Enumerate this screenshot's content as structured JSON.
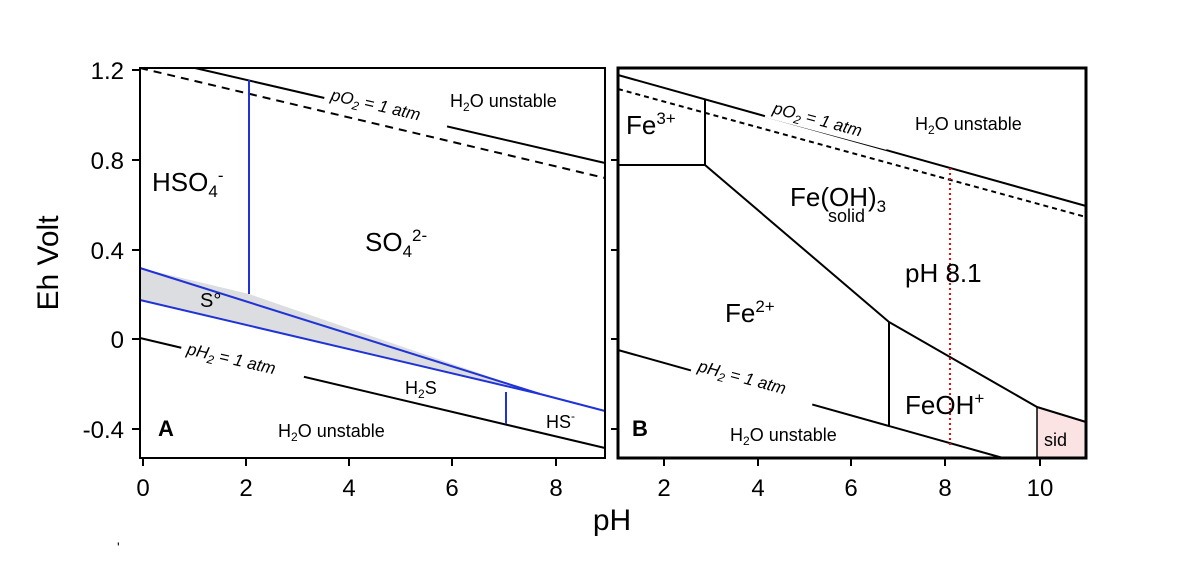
{
  "figure": {
    "y_title": "Eh Volt",
    "x_title": "pH",
    "stray_mark": "'"
  },
  "panel_a": {
    "letter": "A",
    "x_ticks": [
      "0",
      "2",
      "4",
      "6",
      "8"
    ],
    "y_ticks": [
      "1.2",
      "0.8",
      "0.4",
      "0",
      "-0.4"
    ],
    "label_po2": "pO",
    "label_po2_sub": "2",
    "label_po2_rest": " = 1 atm",
    "label_ph2": "pH",
    "label_ph2_sub": "2",
    "label_ph2_rest": " = 1 atm",
    "h2o_top": "H",
    "h2o_top_sub": "2",
    "h2o_top_rest": "O unstable",
    "h2o_bottom": "H",
    "h2o_bottom_sub": "2",
    "h2o_bottom_rest": "O unstable",
    "hso4": "HSO",
    "hso4_sub": "4",
    "hso4_sup": "-",
    "so4": "SO",
    "so4_sub": "4",
    "so4_sup": "2-",
    "s0": "S°",
    "h2s": "H",
    "h2s_sub": "2",
    "h2s_rest": "S",
    "hs": "HS",
    "hs_sup": "-",
    "colors": {
      "boundary": "#1f33d6",
      "sulfur_fill": "#dcdde0"
    }
  },
  "panel_b": {
    "letter": "B",
    "x_ticks": [
      "2",
      "4",
      "6",
      "8",
      "10"
    ],
    "label_po2": "pO",
    "label_po2_sub": "2",
    "label_po2_rest": " = 1 atm",
    "label_ph2": "pH",
    "label_ph2_sub": "2",
    "label_ph2_rest": " = 1 atm",
    "h2o_top": "H",
    "h2o_top_sub": "2",
    "h2o_top_rest": "O unstable",
    "h2o_bottom": "H",
    "h2o_bottom_sub": "2",
    "h2o_bottom_rest": "O unstable",
    "fe3": "Fe",
    "fe3_sup": "3+",
    "feoh3": "Fe(OH)",
    "feoh3_sub": "3",
    "feoh3_solid": "solid",
    "fe2": "Fe",
    "fe2_sup": "2+",
    "feoh": "FeOH",
    "feoh_sup": "+",
    "sid": "sid",
    "ph_marker": "pH 8.1",
    "colors": {
      "marker": "#e01010",
      "siderite_fill": "#fbe3e3"
    }
  }
}
